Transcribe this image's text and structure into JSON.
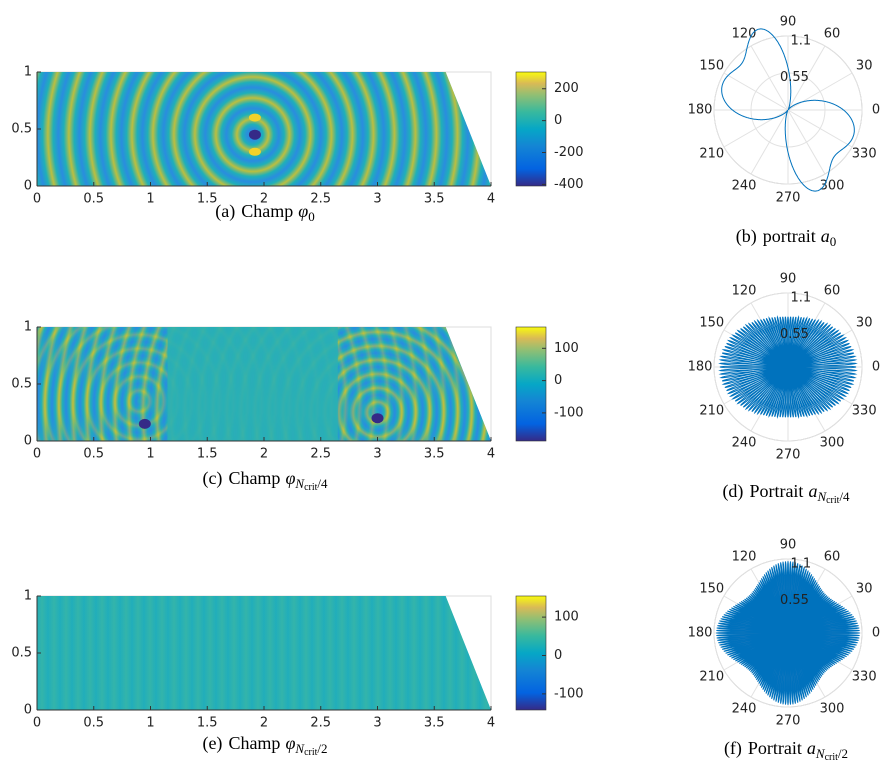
{
  "chart_data": [
    {
      "type": "heatmap",
      "caption": {
        "label": "(a)",
        "text": "Champ",
        "symbol": "φ",
        "sub": "0"
      },
      "xlim": [
        0,
        4
      ],
      "ylim": [
        0,
        1
      ],
      "xticks": [
        0,
        0.5,
        1,
        1.5,
        2,
        2.5,
        3,
        3.5,
        4
      ],
      "yticks": [
        0,
        0.5,
        1
      ],
      "clim": [
        -410,
        305
      ],
      "cticks": [
        -400,
        -200,
        0,
        200
      ]
    },
    {
      "type": "polar",
      "caption": {
        "label": "(b)",
        "text": "portrait",
        "symbol": "a",
        "sub": "0"
      },
      "rlim": [
        0,
        1.1
      ],
      "rticks": [
        0.55,
        1.1
      ],
      "thetaticks": [
        0,
        30,
        60,
        90,
        120,
        150,
        180,
        210,
        240,
        270,
        300,
        330
      ]
    },
    {
      "type": "heatmap",
      "caption": {
        "label": "(c)",
        "text": "Champ",
        "symbol": "φ",
        "sub": "N",
        "subsub": "crit",
        "suffix": "/4"
      },
      "xlim": [
        0,
        4
      ],
      "ylim": [
        0,
        1
      ],
      "xticks": [
        0,
        0.5,
        1,
        1.5,
        2,
        2.5,
        3,
        3.5,
        4
      ],
      "yticks": [
        0,
        0.5,
        1
      ],
      "clim": [
        -187,
        166
      ],
      "cticks": [
        -100,
        0,
        100
      ]
    },
    {
      "type": "polar",
      "caption": {
        "label": "(d)",
        "text": "Portrait",
        "symbol": "a",
        "sub": "N",
        "subsub": "crit",
        "suffix": "/4"
      },
      "rlim": [
        0,
        1.1
      ],
      "rticks": [
        0.55,
        1.1
      ],
      "thetaticks": [
        0,
        30,
        60,
        90,
        120,
        150,
        180,
        210,
        240,
        270,
        300,
        330
      ]
    },
    {
      "type": "heatmap",
      "caption": {
        "label": "(e)",
        "text": "Champ",
        "symbol": "φ",
        "sub": "N",
        "subsub": "crit",
        "suffix": "/2"
      },
      "xlim": [
        0,
        4
      ],
      "ylim": [
        0,
        1
      ],
      "xticks": [
        0,
        0.5,
        1,
        1.5,
        2,
        2.5,
        3,
        3.5,
        4
      ],
      "yticks": [
        0,
        0.5,
        1
      ],
      "clim": [
        -142,
        155
      ],
      "cticks": [
        -100,
        0,
        100
      ]
    },
    {
      "type": "polar",
      "caption": {
        "label": "(f)",
        "text": "Portrait",
        "symbol": "a",
        "sub": "N",
        "subsub": "crit",
        "suffix": "/2"
      },
      "rlim": [
        0,
        1.1
      ],
      "rticks": [
        0.55,
        1.1
      ],
      "thetaticks": [
        0,
        30,
        60,
        90,
        120,
        150,
        180,
        210,
        240,
        270,
        300,
        330
      ]
    }
  ]
}
